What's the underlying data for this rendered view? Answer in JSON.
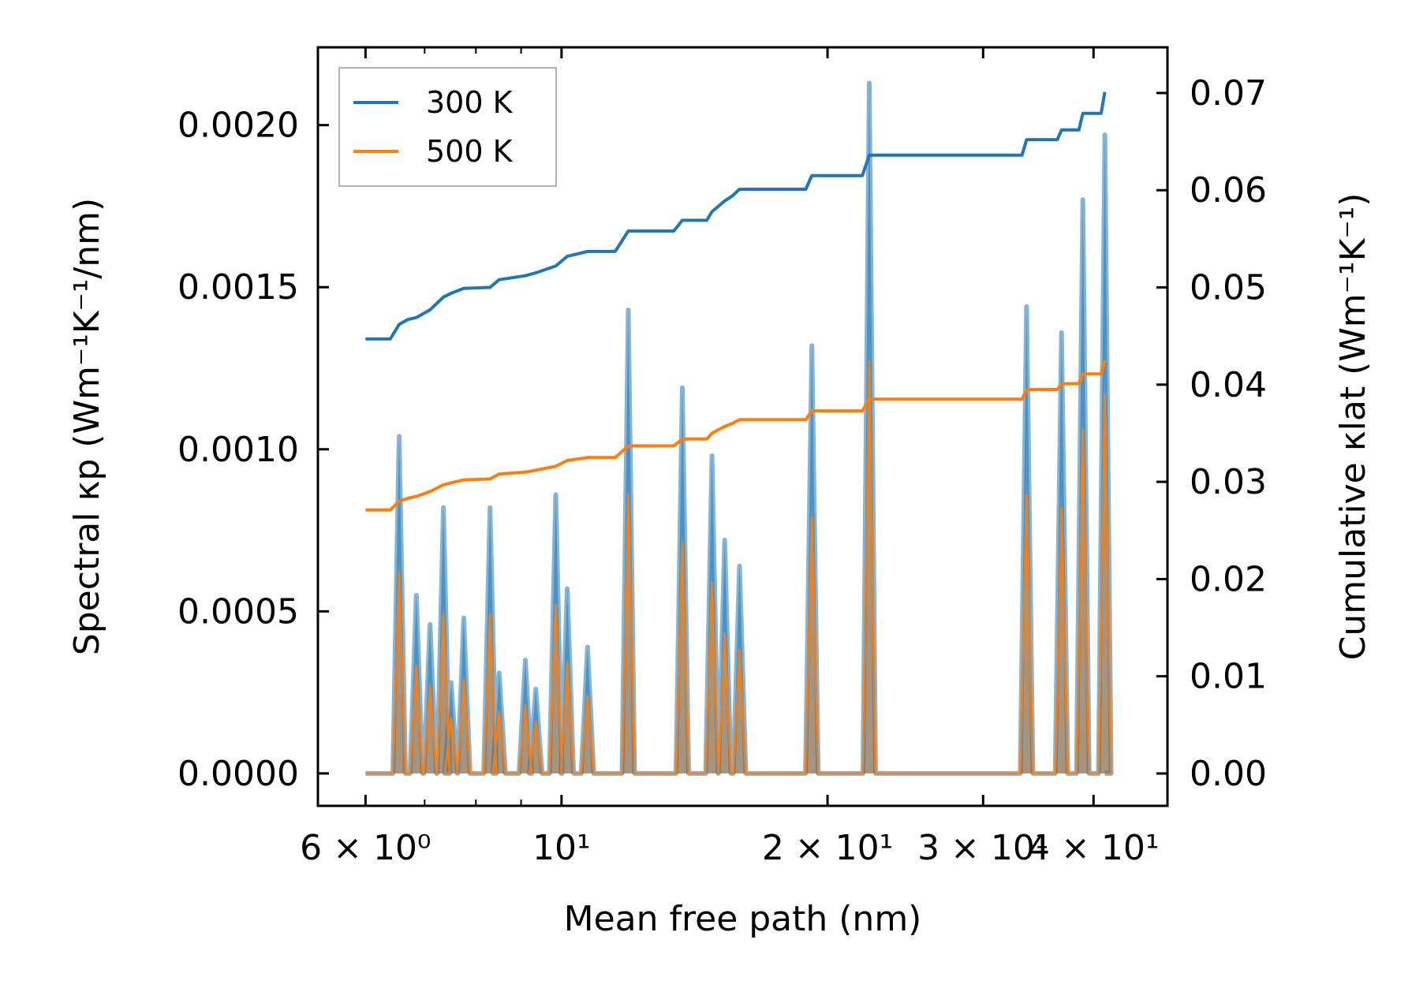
{
  "chart_data": {
    "type": "line",
    "x_scale": "log",
    "xlabel": "Mean free path (nm)",
    "ylabel_left": "Spectral κp (Wm⁻¹K⁻¹/nm)",
    "ylabel_right": "Cumulative κlat (Wm⁻¹K⁻¹)",
    "xlim": [
      5.3,
      48.5
    ],
    "ylim_left": [
      -0.0001,
      0.00224
    ],
    "ylim_right": [
      -0.00333,
      0.0747
    ],
    "x_ticks": [
      {
        "value": 6,
        "label": "6 × 10⁰"
      },
      {
        "value": 10,
        "label": "10¹"
      },
      {
        "value": 20,
        "label": "2 × 10¹"
      },
      {
        "value": 30,
        "label": "3 × 10¹"
      },
      {
        "value": 40,
        "label": "4 × 10¹"
      }
    ],
    "y_ticks_left": [
      "0.0000",
      "0.0005",
      "0.0010",
      "0.0015",
      "0.0020"
    ],
    "y_tick_values_left": [
      0,
      0.0005,
      0.001,
      0.0015,
      0.002
    ],
    "y_ticks_right": [
      "0.00",
      "0.01",
      "0.02",
      "0.03",
      "0.04",
      "0.05",
      "0.06",
      "0.07"
    ],
    "y_tick_values_right": [
      0,
      0.01,
      0.02,
      0.03,
      0.04,
      0.05,
      0.06,
      0.07
    ],
    "legend": {
      "placement": "top-left",
      "entries": [
        "300 K",
        "500 K"
      ]
    },
    "series": [
      {
        "name": "300 K",
        "color": "#1f77b4",
        "spectral_peaks": [
          [
            6.55,
            0.00104
          ],
          [
            6.85,
            0.00055
          ],
          [
            7.1,
            0.00046
          ],
          [
            7.35,
            0.00082
          ],
          [
            7.5,
            0.00028
          ],
          [
            7.75,
            0.00048
          ],
          [
            8.3,
            0.00082
          ],
          [
            8.5,
            0.00031
          ],
          [
            9.1,
            0.00035
          ],
          [
            9.35,
            0.00026
          ],
          [
            9.85,
            0.00086
          ],
          [
            10.15,
            0.00057
          ],
          [
            10.7,
            0.00039
          ],
          [
            11.9,
            0.00143
          ],
          [
            13.7,
            0.00119
          ],
          [
            14.8,
            0.00098
          ],
          [
            15.3,
            0.00072
          ],
          [
            15.9,
            0.00064
          ],
          [
            19.2,
            0.00132
          ],
          [
            22.3,
            0.00213
          ],
          [
            33.6,
            0.00144
          ],
          [
            36.8,
            0.00136
          ],
          [
            38.9,
            0.00177
          ],
          [
            41.2,
            0.00197
          ]
        ],
        "cumulative": [
          [
            6.0,
            0.0447
          ],
          [
            6.4,
            0.0447
          ],
          [
            6.55,
            0.0462
          ],
          [
            6.7,
            0.0467
          ],
          [
            6.85,
            0.0469
          ],
          [
            7.1,
            0.0477
          ],
          [
            7.35,
            0.049
          ],
          [
            7.5,
            0.0494
          ],
          [
            7.75,
            0.0499
          ],
          [
            8.3,
            0.05
          ],
          [
            8.5,
            0.0508
          ],
          [
            9.1,
            0.0512
          ],
          [
            9.35,
            0.0515
          ],
          [
            9.85,
            0.0522
          ],
          [
            10.15,
            0.0532
          ],
          [
            10.7,
            0.0537
          ],
          [
            11.5,
            0.0537
          ],
          [
            11.9,
            0.0558
          ],
          [
            13.4,
            0.0558
          ],
          [
            13.7,
            0.0569
          ],
          [
            14.6,
            0.0569
          ],
          [
            14.8,
            0.0578
          ],
          [
            15.3,
            0.0589
          ],
          [
            15.6,
            0.0594
          ],
          [
            15.9,
            0.0601
          ],
          [
            18.9,
            0.0601
          ],
          [
            19.2,
            0.0615
          ],
          [
            21.9,
            0.0615
          ],
          [
            22.3,
            0.0636
          ],
          [
            33.2,
            0.0636
          ],
          [
            33.6,
            0.0652
          ],
          [
            36.4,
            0.0652
          ],
          [
            36.8,
            0.0662
          ],
          [
            38.5,
            0.0662
          ],
          [
            38.9,
            0.0679
          ],
          [
            40.8,
            0.0679
          ],
          [
            41.2,
            0.0701
          ]
        ]
      },
      {
        "name": "500 K",
        "color": "#ff7f0e",
        "spectral_peaks": [
          [
            6.55,
            0.00062
          ],
          [
            6.85,
            0.00033
          ],
          [
            7.1,
            0.00027
          ],
          [
            7.35,
            0.00049
          ],
          [
            7.5,
            0.00017
          ],
          [
            7.75,
            0.00029
          ],
          [
            8.3,
            0.00049
          ],
          [
            8.5,
            0.00019
          ],
          [
            9.1,
            0.00021
          ],
          [
            9.35,
            0.00016
          ],
          [
            9.85,
            0.00052
          ],
          [
            10.15,
            0.00034
          ],
          [
            10.7,
            0.00024
          ],
          [
            11.9,
            0.00086
          ],
          [
            13.7,
            0.00071
          ],
          [
            14.8,
            0.00059
          ],
          [
            15.3,
            0.00043
          ],
          [
            15.9,
            0.00038
          ],
          [
            19.2,
            0.00079
          ],
          [
            22.3,
            0.00127
          ],
          [
            33.6,
            0.00086
          ],
          [
            36.8,
            0.00082
          ],
          [
            38.9,
            0.00106
          ],
          [
            41.2,
            0.00117
          ]
        ],
        "cumulative": [
          [
            6.0,
            0.0271
          ],
          [
            6.4,
            0.0271
          ],
          [
            6.55,
            0.028
          ],
          [
            6.7,
            0.0283
          ],
          [
            6.85,
            0.0285
          ],
          [
            7.1,
            0.029
          ],
          [
            7.35,
            0.0297
          ],
          [
            7.5,
            0.0299
          ],
          [
            7.75,
            0.0302
          ],
          [
            8.3,
            0.0303
          ],
          [
            8.5,
            0.0308
          ],
          [
            9.1,
            0.031
          ],
          [
            9.35,
            0.0312
          ],
          [
            9.85,
            0.0316
          ],
          [
            10.15,
            0.0322
          ],
          [
            10.7,
            0.0325
          ],
          [
            11.5,
            0.0325
          ],
          [
            11.9,
            0.0337
          ],
          [
            13.4,
            0.0337
          ],
          [
            13.7,
            0.0344
          ],
          [
            14.6,
            0.0344
          ],
          [
            14.8,
            0.035
          ],
          [
            15.3,
            0.0357
          ],
          [
            15.6,
            0.036
          ],
          [
            15.9,
            0.0364
          ],
          [
            18.9,
            0.0364
          ],
          [
            19.2,
            0.0373
          ],
          [
            21.9,
            0.0373
          ],
          [
            22.3,
            0.0385
          ],
          [
            33.2,
            0.0385
          ],
          [
            33.6,
            0.0395
          ],
          [
            36.4,
            0.0395
          ],
          [
            36.8,
            0.0401
          ],
          [
            38.5,
            0.0401
          ],
          [
            38.9,
            0.0411
          ],
          [
            40.8,
            0.0411
          ],
          [
            41.2,
            0.0425
          ]
        ]
      }
    ]
  }
}
